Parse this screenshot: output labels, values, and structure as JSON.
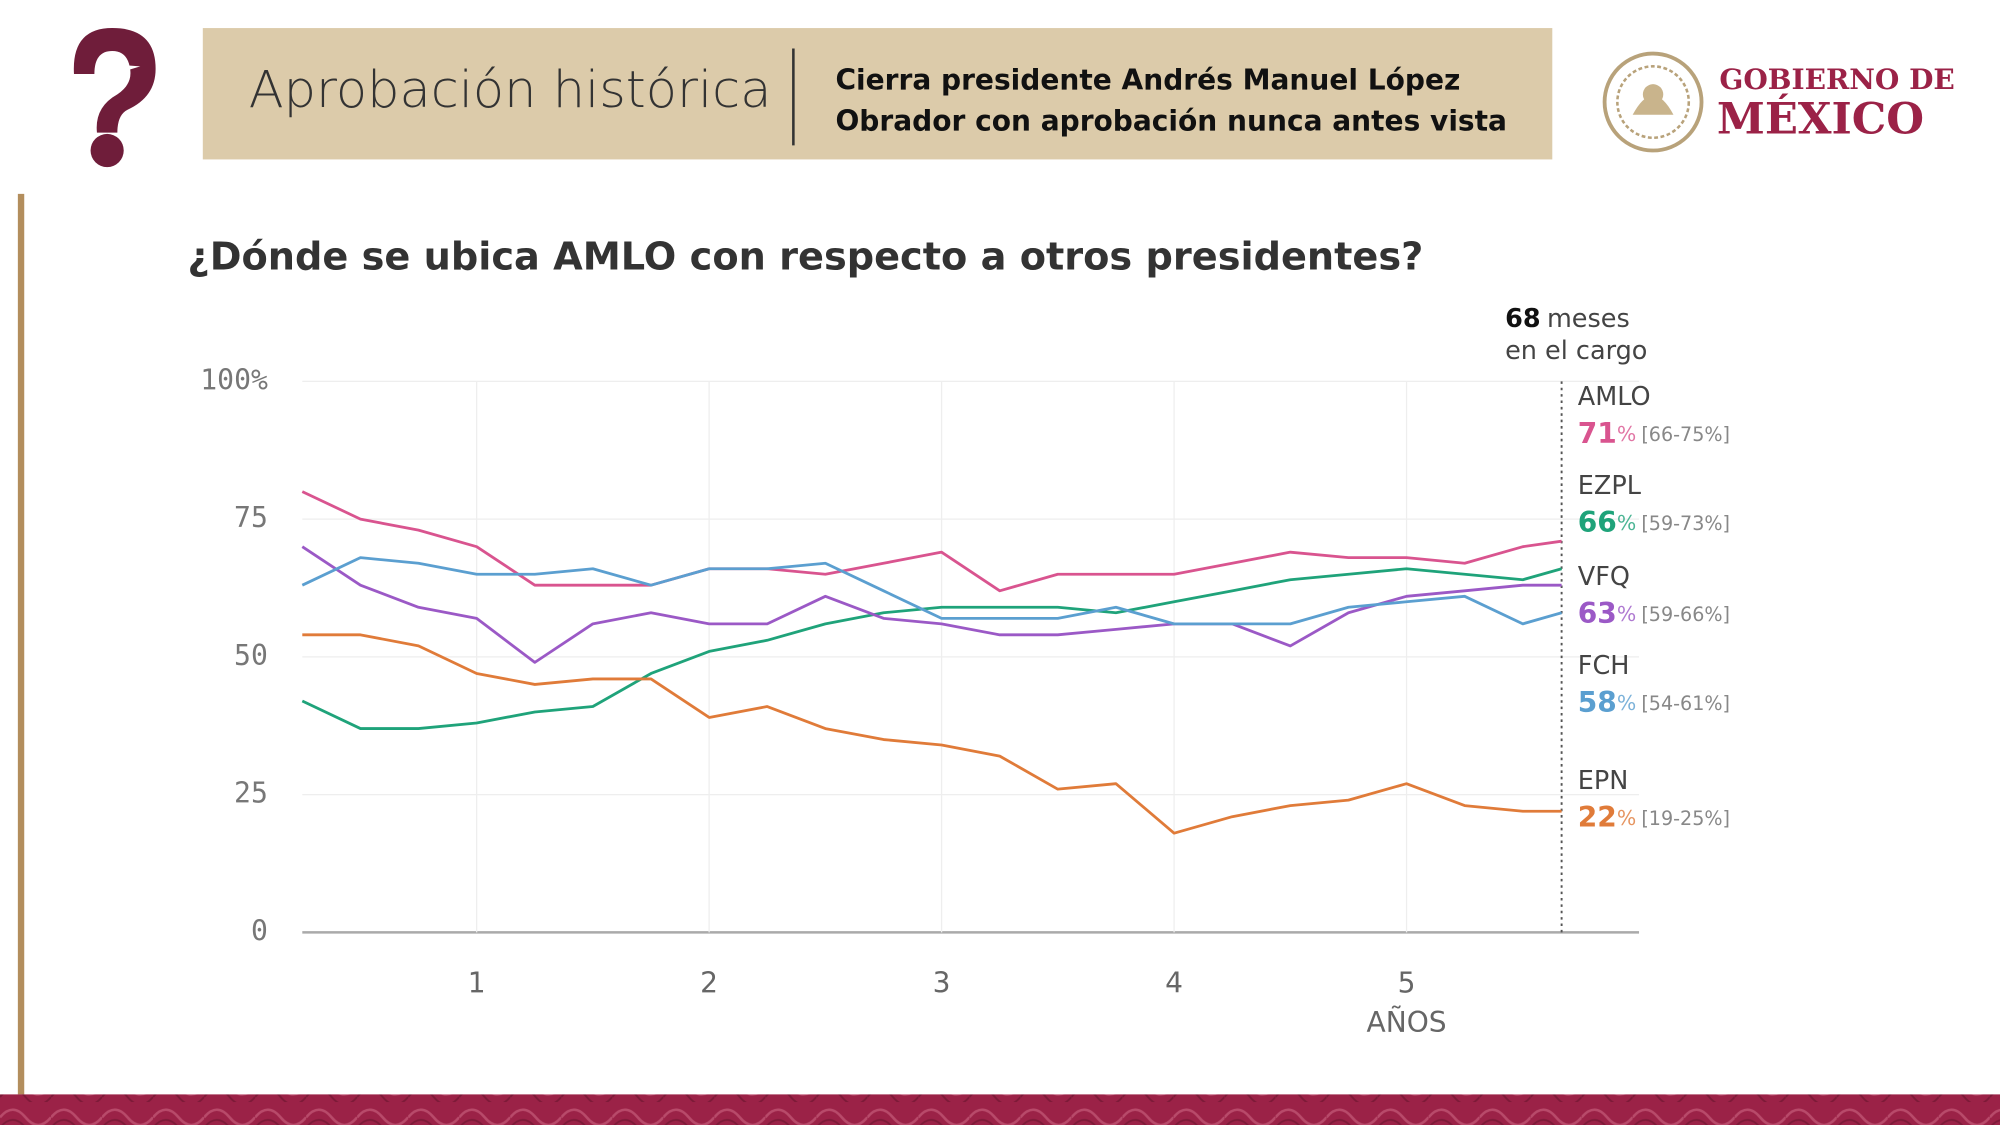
{
  "header": {
    "title": "Aprobación histórica",
    "subtitle_line1": "Cierra presidente Andrés Manuel López",
    "subtitle_line2": "Obrador con aprobación nunca antes vista",
    "brand_line1": "GOBIERNO DE",
    "brand_line2": "MÉXICO"
  },
  "chart_data": {
    "type": "line",
    "title": "¿Dónde se ubica AMLO con respecto a otros presidentes?",
    "x_label": "AÑOS",
    "unit": "%",
    "x": [
      0.25,
      0.5,
      0.75,
      1,
      1.25,
      1.5,
      1.75,
      2,
      2.25,
      2.5,
      2.75,
      3,
      3.25,
      3.5,
      3.75,
      4,
      4.25,
      4.5,
      4.75,
      5,
      5.25,
      5.5,
      5.667
    ],
    "xlim": [
      0.25,
      6
    ],
    "xticks": [
      1,
      2,
      3,
      4,
      5
    ],
    "ylim": [
      0,
      100
    ],
    "yticks": [
      0,
      25,
      50,
      75,
      {
        "value": 100,
        "label": "100%"
      }
    ],
    "grid": true,
    "marker": {
      "x": 5.667,
      "months": 68,
      "label": "meses",
      "label2": "en el cargo"
    },
    "series": [
      {
        "name": "AMLO",
        "color": "#d9548f",
        "current": 71,
        "range": "[66-75%]",
        "values": [
          80,
          75,
          73,
          70,
          63,
          63,
          63,
          66,
          66,
          65,
          67,
          69,
          62,
          65,
          65,
          65,
          67,
          69,
          68,
          68,
          67,
          70,
          71
        ]
      },
      {
        "name": "EZPL",
        "color": "#1fa37a",
        "current": 66,
        "range": "[59-73%]",
        "values": [
          42,
          37,
          37,
          38,
          40,
          41,
          47,
          51,
          53,
          56,
          58,
          59,
          59,
          59,
          58,
          60,
          62,
          64,
          65,
          66,
          65,
          64,
          66
        ]
      },
      {
        "name": "VFQ",
        "color": "#9b59c6",
        "current": 63,
        "range": "[59-66%]",
        "values": [
          70,
          63,
          59,
          57,
          49,
          56,
          58,
          56,
          56,
          61,
          57,
          56,
          54,
          54,
          55,
          56,
          56,
          52,
          58,
          61,
          62,
          63,
          63
        ]
      },
      {
        "name": "FCH",
        "color": "#5b9fd0",
        "current": 58,
        "range": "[54-61%]",
        "values": [
          63,
          68,
          67,
          65,
          65,
          66,
          63,
          66,
          66,
          67,
          62,
          57,
          57,
          57,
          59,
          56,
          56,
          56,
          59,
          60,
          61,
          56,
          58
        ]
      },
      {
        "name": "EPN",
        "color": "#e07b39",
        "current": 22,
        "range": "[19-25%]",
        "values": [
          54,
          54,
          52,
          47,
          45,
          46,
          46,
          39,
          41,
          37,
          35,
          34,
          32,
          26,
          27,
          18,
          21,
          23,
          24,
          27,
          23,
          22,
          22
        ]
      }
    ]
  }
}
